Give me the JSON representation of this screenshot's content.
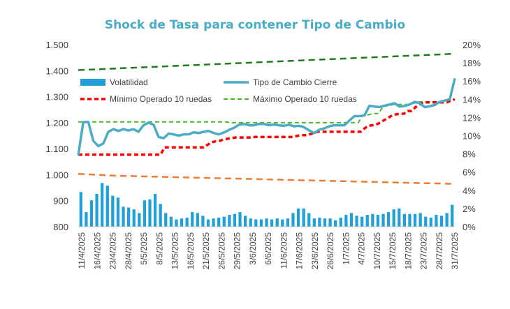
{
  "chart_data": {
    "type": "line",
    "title": "Shock de Tasa para contener Tipo de Cambio",
    "title_color": "#4bacc6",
    "grid": false,
    "legend_position": "top-center",
    "y_left": {
      "min": 800,
      "max": 1500,
      "ticks": [
        800,
        900,
        "1.000",
        "1.100",
        "1.200",
        "1.300",
        "1.400",
        "1.500"
      ]
    },
    "y_right": {
      "min": 0,
      "max": 20,
      "ticks": [
        "0%",
        "2%",
        "4%",
        "6%",
        "8%",
        "10%",
        "12%",
        "14%",
        "16%",
        "18%",
        "20%"
      ]
    },
    "x_tick_labels": [
      "11/4/2025",
      "16/4/2025",
      "23/4/2025",
      "28/4/2025",
      "5/5/2025",
      "8/5/2025",
      "13/5/2025",
      "16/5/2025",
      "21/5/2025",
      "26/5/2025",
      "29/5/2025",
      "3/6/2025",
      "6/6/2025",
      "11/6/2025",
      "17/6/2025",
      "23/6/2025",
      "26/6/2025",
      "1/7/2025",
      "4/7/2025",
      "10/7/2025",
      "15/7/2025",
      "18/7/2025",
      "23/7/2025",
      "28/7/2025",
      "31/7/2025"
    ],
    "legend": [
      {
        "label": "Volatilidad",
        "kind": "bar",
        "color": "#1fa0d8"
      },
      {
        "label": "Tipo de Cambio Cierre",
        "kind": "line",
        "color": "#4bacc6"
      },
      {
        "label": "Mínimo Operado 10 ruedas",
        "kind": "dash",
        "color": "#ff0000"
      },
      {
        "label": "Máximo Operado 10 ruedas",
        "kind": "dash",
        "color": "#4bb82b"
      }
    ],
    "series": [
      {
        "key": "volatilidad",
        "axis": "right",
        "color": "#1fa0d8",
        "values": [
          3.8,
          1.6,
          2.9,
          3.6,
          4.8,
          4.5,
          3.4,
          3.2,
          2.2,
          2.1,
          1.9,
          1.5,
          2.9,
          3.0,
          3.6,
          2.5,
          1.5,
          1.1,
          0.8,
          0.9,
          1.0,
          1.6,
          1.5,
          1.2,
          0.8,
          0.9,
          1.0,
          1.1,
          1.3,
          1.4,
          1.6,
          1.2,
          0.9,
          0.8,
          0.8,
          0.9,
          0.8,
          0.9,
          0.8,
          0.9,
          1.5,
          2.0,
          2.0,
          1.5,
          0.9,
          1.0,
          0.9,
          0.9,
          0.7,
          1.0,
          1.3,
          1.5,
          1.2,
          1.1,
          1.3,
          1.4,
          1.3,
          1.4,
          1.6,
          1.9,
          2.0,
          1.4,
          1.4,
          1.4,
          1.5,
          1.1,
          1.0,
          1.3,
          1.2,
          1.5,
          2.4
        ]
      },
      {
        "key": "tipo_cambio",
        "axis": "left",
        "color": "#4bacc6",
        "values": [
          1075,
          1202,
          1203,
          1130,
          1110,
          1120,
          1165,
          1175,
          1168,
          1175,
          1170,
          1175,
          1165,
          1190,
          1200,
          1192,
          1145,
          1140,
          1158,
          1155,
          1150,
          1155,
          1155,
          1163,
          1160,
          1165,
          1168,
          1160,
          1155,
          1162,
          1172,
          1180,
          1192,
          1195,
          1190,
          1190,
          1195,
          1195,
          1190,
          1193,
          1190,
          1188,
          1192,
          1186,
          1188,
          1182,
          1170,
          1160,
          1173,
          1178,
          1186,
          1190,
          1190,
          1190,
          1208,
          1225,
          1225,
          1228,
          1265,
          1262,
          1260,
          1265,
          1270,
          1275,
          1262,
          1264,
          1270,
          1280,
          1275,
          1260,
          1263,
          1268,
          1280,
          1285,
          1290,
          1370
        ]
      },
      {
        "key": "minimo",
        "axis": "left",
        "color": "#ff0000",
        "values": [
          1077,
          1077,
          1077,
          1077,
          1077,
          1077,
          1077,
          1077,
          1077,
          1077,
          1077,
          1077,
          1077,
          1077,
          1077,
          1077,
          1077,
          1077,
          1077,
          1077,
          1077,
          1077,
          1105,
          1105,
          1105,
          1105,
          1105,
          1105,
          1105,
          1105,
          1105,
          1105,
          1105,
          1115,
          1125,
          1128,
          1130,
          1135,
          1138,
          1140,
          1143,
          1143,
          1143,
          1143,
          1143,
          1145,
          1145,
          1145,
          1145,
          1145,
          1145,
          1145,
          1145,
          1145,
          1145,
          1145,
          1150,
          1152,
          1152,
          1155,
          1160,
          1165,
          1165,
          1165,
          1165,
          1165,
          1165,
          1165,
          1165,
          1165,
          1165,
          1165,
          1165,
          1178,
          1188,
          1190,
          1193,
          1200,
          1210,
          1218,
          1228,
          1232,
          1234,
          1234,
          1245,
          1245,
          1260,
          1270,
          1278,
          1278,
          1278,
          1278,
          1278,
          1278,
          1278,
          1285,
          1290
        ]
      },
      {
        "key": "maximo",
        "axis": "left",
        "color": "#4bb82b",
        "values": [
          1203,
          1203,
          1203,
          1203,
          1203,
          1203,
          1203,
          1203,
          1203,
          1203,
          1203,
          1203,
          1203,
          1203,
          1203,
          1203,
          1203,
          1203,
          1203,
          1203,
          1203,
          1203,
          1203,
          1203,
          1203,
          1203,
          1203,
          1203,
          1203,
          1203,
          1200,
          1200,
          1200,
          1200,
          1200,
          1200,
          1200,
          1200,
          1200,
          1200,
          1200,
          1200,
          1200,
          1200,
          1200,
          1200,
          1200,
          1200,
          1200,
          1200,
          1200,
          1200,
          1200,
          1200,
          1200,
          1200,
          1230,
          1230,
          1235,
          1235,
          1265,
          1265,
          1270,
          1270,
          1270,
          1270,
          1275,
          1280,
          1280,
          1280,
          1280,
          1280,
          1285,
          1285,
          1370
        ]
      },
      {
        "key": "tasa_upper",
        "axis": "right",
        "color": "#1e7d1e",
        "values": [
          17.2,
          17.4,
          17.6,
          17.8,
          18.0,
          18.2,
          18.4,
          18.6,
          18.8,
          19.0
        ]
      },
      {
        "key": "tasa_lower",
        "axis": "right",
        "color": "#ed7d31",
        "values": [
          5.8,
          5.6,
          5.5,
          5.4,
          5.3,
          5.2,
          5.1,
          5.0,
          4.9,
          4.8,
          4.7
        ]
      }
    ]
  }
}
